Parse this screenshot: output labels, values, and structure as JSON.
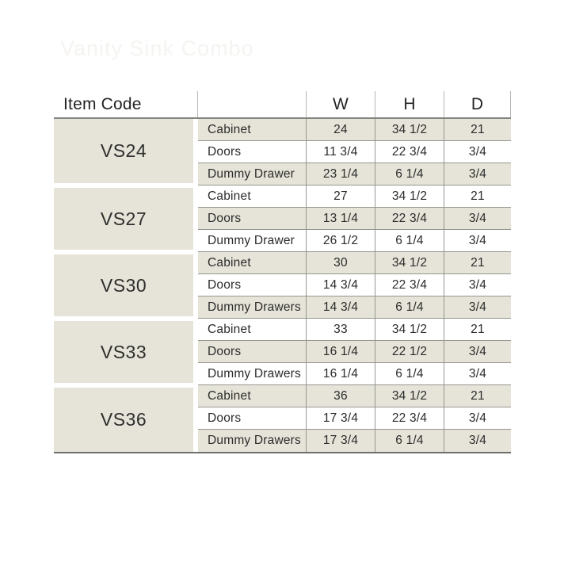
{
  "watermark": {
    "text": "Vanity Sink Combo"
  },
  "table": {
    "header": {
      "item_code_label": "Item Code",
      "columns": [
        "W",
        "H",
        "D"
      ]
    },
    "colors": {
      "shaded_row": "#e6e4d8",
      "row_border": "#96968f",
      "header_border": "#858580",
      "table_bottom_border": "#6e6e6a",
      "text": "#2b2b2b",
      "watermark_text": "#f5f4f1"
    },
    "groups": [
      {
        "code": "VS24",
        "rows": [
          {
            "label": "Cabinet",
            "w": "24",
            "h": "34 1/2",
            "d": "21"
          },
          {
            "label": "Doors",
            "w": "11 3/4",
            "h": "22 3/4",
            "d": "3/4"
          },
          {
            "label": "Dummy Drawer",
            "w": "23 1/4",
            "h": "6 1/4",
            "d": "3/4"
          }
        ]
      },
      {
        "code": "VS27",
        "rows": [
          {
            "label": "Cabinet",
            "w": "27",
            "h": "34 1/2",
            "d": "21"
          },
          {
            "label": "Doors",
            "w": "13 1/4",
            "h": "22 3/4",
            "d": "3/4"
          },
          {
            "label": "Dummy Drawer",
            "w": "26 1/2",
            "h": "6 1/4",
            "d": "3/4"
          }
        ]
      },
      {
        "code": "VS30",
        "rows": [
          {
            "label": "Cabinet",
            "w": "30",
            "h": "34 1/2",
            "d": "21"
          },
          {
            "label": "Doors",
            "w": "14 3/4",
            "h": "22 3/4",
            "d": "3/4"
          },
          {
            "label": "Dummy Drawers",
            "w": "14 3/4",
            "h": "6 1/4",
            "d": "3/4"
          }
        ]
      },
      {
        "code": "VS33",
        "rows": [
          {
            "label": "Cabinet",
            "w": "33",
            "h": "34 1/2",
            "d": "21"
          },
          {
            "label": "Doors",
            "w": "16 1/4",
            "h": "22 1/2",
            "d": "3/4"
          },
          {
            "label": "Dummy Drawers",
            "w": "16 1/4",
            "h": "6 1/4",
            "d": "3/4"
          }
        ]
      },
      {
        "code": "VS36",
        "rows": [
          {
            "label": "Cabinet",
            "w": "36",
            "h": "34 1/2",
            "d": "21"
          },
          {
            "label": "Doors",
            "w": "17 3/4",
            "h": "22 3/4",
            "d": "3/4"
          },
          {
            "label": "Dummy Drawers",
            "w": "17 3/4",
            "h": "6 1/4",
            "d": "3/4"
          }
        ]
      }
    ]
  }
}
